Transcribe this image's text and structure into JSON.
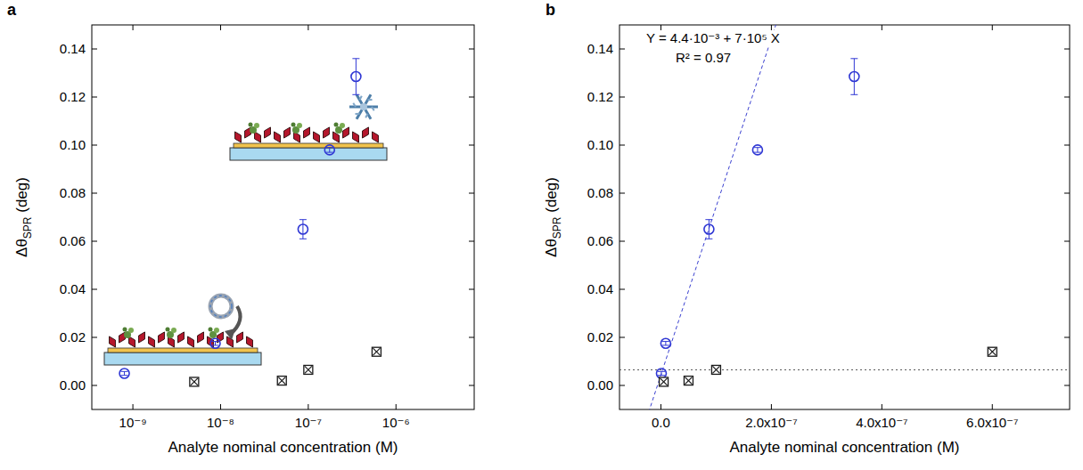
{
  "chart_data": [
    {
      "type": "scatter",
      "panel": "a",
      "log": "x",
      "x_label": "Analyte nominal concentration (M)",
      "y_label": {
        "symbol": "Δθ",
        "subscript": "SPR",
        "unit": " (deg)"
      },
      "xlim": [
        3.4e-10,
        7.8e-06
      ],
      "xticks": [
        {
          "value": 1e-09,
          "label": "10⁻⁹"
        },
        {
          "value": 1e-08,
          "label": "10⁻⁸"
        },
        {
          "value": 1e-07,
          "label": "10⁻⁷"
        },
        {
          "value": 1e-06,
          "label": "10⁻⁶"
        }
      ],
      "ylim": [
        -0.01,
        0.15
      ],
      "yticks": [
        {
          "value": 0,
          "label": "0.00"
        },
        {
          "value": 0.02,
          "label": "0.02"
        },
        {
          "value": 0.04,
          "label": "0.04"
        },
        {
          "value": 0.06,
          "label": "0.06"
        },
        {
          "value": 0.08,
          "label": "0.08"
        },
        {
          "value": 0.1,
          "label": "0.10"
        },
        {
          "value": 0.12,
          "label": "0.12"
        },
        {
          "value": 0.14,
          "label": "0.14"
        }
      ],
      "series": [
        {
          "color": "#2f37d4",
          "marker": "circle",
          "x": [
            8e-10,
            8.7e-09,
            8.7e-08,
            1.75e-07,
            3.5e-07
          ],
          "values": [
            0.005,
            0.0175,
            0.065,
            0.098,
            0.1285
          ],
          "errors": [
            0.0008,
            0.0008,
            0.004,
            0.001,
            0.0075
          ]
        },
        {
          "color": "#1a1a1a",
          "marker": "square-x",
          "x": [
            5e-09,
            5e-08,
            1e-07,
            6e-07
          ],
          "values": [
            0.0015,
            0.002,
            0.0065,
            0.014
          ],
          "errors": [
            0.0007,
            0.0008,
            0.001,
            0.001
          ]
        }
      ]
    },
    {
      "type": "scatter",
      "panel": "b",
      "x_label": "Analyte nominal concentration (M)",
      "y_label": {
        "symbol": "Δθ",
        "subscript": "SPR",
        "unit": " (deg)"
      },
      "xlim": [
        -7.5e-08,
        7.4e-07
      ],
      "xticks": [
        {
          "value": 0,
          "label": "0.0"
        },
        {
          "value": 2e-07,
          "label": "2.0x10⁻⁷"
        },
        {
          "value": 4e-07,
          "label": "4.0x10⁻⁷"
        },
        {
          "value": 6e-07,
          "label": "6.0x10⁻⁷"
        }
      ],
      "ylim": [
        -0.01,
        0.15
      ],
      "yticks": [
        {
          "value": 0,
          "label": "0.00"
        },
        {
          "value": 0.02,
          "label": "0.02"
        },
        {
          "value": 0.04,
          "label": "0.04"
        },
        {
          "value": 0.06,
          "label": "0.06"
        },
        {
          "value": 0.08,
          "label": "0.08"
        },
        {
          "value": 0.1,
          "label": "0.10"
        },
        {
          "value": 0.12,
          "label": "0.12"
        },
        {
          "value": 0.14,
          "label": "0.14"
        }
      ],
      "series": [
        {
          "color": "#2f37d4",
          "marker": "circle",
          "x": [
            8e-10,
            8.7e-09,
            8.7e-08,
            1.75e-07,
            3.5e-07
          ],
          "values": [
            0.005,
            0.0175,
            0.065,
            0.098,
            0.1285
          ],
          "errors": [
            0.0008,
            0.0008,
            0.004,
            0.001,
            0.0075
          ]
        },
        {
          "color": "#1a1a1a",
          "marker": "square-x",
          "x": [
            5e-09,
            5e-08,
            1e-07,
            6e-07
          ],
          "values": [
            0.0015,
            0.002,
            0.0065,
            0.014
          ],
          "errors": [
            0.0007,
            0.0008,
            0.001,
            0.001
          ]
        }
      ],
      "fit": {
        "intercept": 0.0044,
        "slope": 700000
      },
      "reference_line": 0.0065,
      "annotations": [
        "Y = 4.4·10⁻³ + 7·10⁵ X",
        "R² = 0.97"
      ]
    }
  ]
}
